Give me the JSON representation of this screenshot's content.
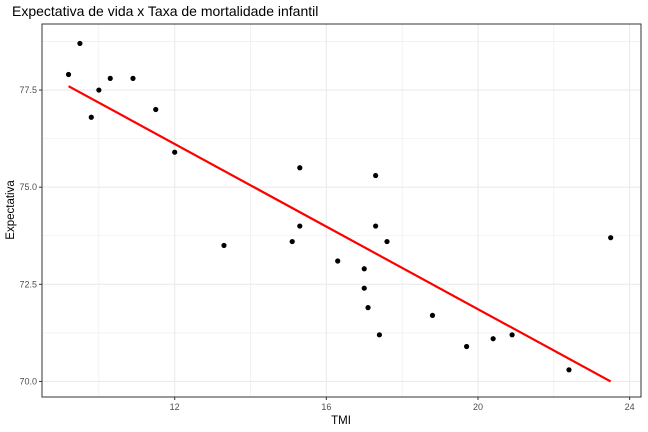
{
  "chart_data": {
    "type": "scatter",
    "title": "Expectativa de vida x Taxa de mortalidade infantil",
    "xlabel": "TMI",
    "ylabel": "Expectativa",
    "xlim": [
      8.5,
      24.3
    ],
    "ylim": [
      69.6,
      79.2
    ],
    "x_ticks": [
      12,
      16,
      20,
      24
    ],
    "x_tick_labels": [
      "12",
      "16",
      "20",
      "24"
    ],
    "y_ticks": [
      70.0,
      72.5,
      75.0,
      77.5
    ],
    "y_tick_labels": [
      "70.0",
      "72.5",
      "75.0",
      "77.5"
    ],
    "grid": true,
    "points": [
      {
        "x": 9.2,
        "y": 77.9
      },
      {
        "x": 9.5,
        "y": 78.7
      },
      {
        "x": 9.8,
        "y": 76.8
      },
      {
        "x": 10.0,
        "y": 77.5
      },
      {
        "x": 10.3,
        "y": 77.8
      },
      {
        "x": 10.9,
        "y": 77.8
      },
      {
        "x": 11.5,
        "y": 77.0
      },
      {
        "x": 12.0,
        "y": 75.9
      },
      {
        "x": 13.3,
        "y": 73.5
      },
      {
        "x": 15.1,
        "y": 73.6
      },
      {
        "x": 15.3,
        "y": 75.5
      },
      {
        "x": 15.3,
        "y": 74.0
      },
      {
        "x": 16.3,
        "y": 73.1
      },
      {
        "x": 17.0,
        "y": 72.9
      },
      {
        "x": 17.0,
        "y": 72.4
      },
      {
        "x": 17.1,
        "y": 71.9
      },
      {
        "x": 17.3,
        "y": 75.3
      },
      {
        "x": 17.3,
        "y": 74.0
      },
      {
        "x": 17.4,
        "y": 71.2
      },
      {
        "x": 17.6,
        "y": 73.6
      },
      {
        "x": 18.8,
        "y": 71.7
      },
      {
        "x": 19.7,
        "y": 70.9
      },
      {
        "x": 20.4,
        "y": 71.1
      },
      {
        "x": 20.9,
        "y": 71.2
      },
      {
        "x": 22.4,
        "y": 70.3
      },
      {
        "x": 23.5,
        "y": 73.7
      }
    ],
    "trend_line": {
      "x": [
        9.2,
        23.5
      ],
      "y": [
        77.6,
        70.0
      ]
    },
    "point_color": "#000000",
    "line_color": "#ff0000",
    "panel_border_color": "#333333",
    "grid_color": "#ebebeb"
  }
}
